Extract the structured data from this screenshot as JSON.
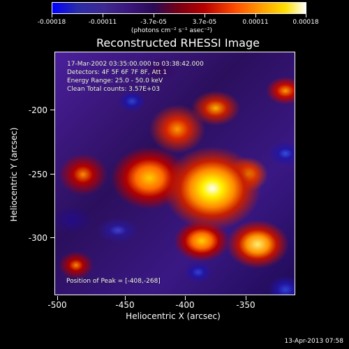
{
  "colorbar": {
    "labels": [
      "-0.00018",
      "-0.00011",
      "-3.7e-05",
      "3.7e-05",
      "0.00011",
      "0.00018"
    ],
    "unit": "(photons cm⁻² s⁻¹ asec⁻²)"
  },
  "title": "Reconstructed RHESSI Image",
  "info": {
    "line1": "17-Mar-2002 03:35:00.000 to 03:38:42.000",
    "line2": "Detectors: 4F 5F 6F 7F 8F, Att 1",
    "line3": "Energy Range: 25.0 - 50.0 keV",
    "line4": "Clean    Total counts: 3.57E+03"
  },
  "peak": "Position of Peak = [-408,-268]",
  "axes": {
    "x_title": "Heliocentric X (arcsec)",
    "y_title": "Heliocentric Y (arcsec)",
    "x_ticks": [
      "-500",
      "-450",
      "-400",
      "-350"
    ],
    "y_ticks": [
      "-200",
      "-250",
      "-300"
    ]
  },
  "timestamp": "13-Apr-2013 07:58"
}
